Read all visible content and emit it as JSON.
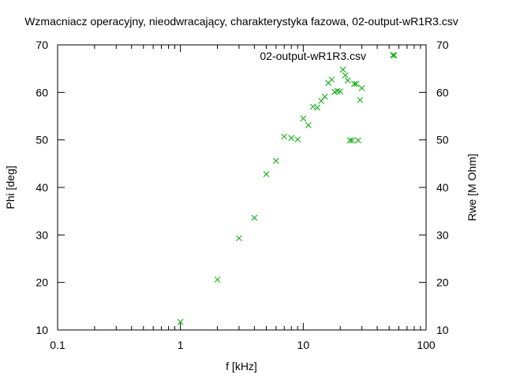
{
  "chart_data": {
    "type": "scatter",
    "title": "Wzmacniacz operacyjny, nieodwracający, charakterystyka fazowa, 02-output-wR1R3.csv",
    "xlabel": "f [kHz]",
    "ylabel": "Phi [deg]",
    "y2label": "Rwe [M Ohm]",
    "xscale": "log",
    "xlim": [
      0.1,
      100
    ],
    "ylim": [
      10,
      70
    ],
    "y2lim": [
      10,
      70
    ],
    "grid": false,
    "legend_position": "top-right",
    "xticks": [
      "0.1",
      "1",
      "10",
      "100"
    ],
    "yticks": [
      "10",
      "20",
      "30",
      "40",
      "50",
      "60",
      "70"
    ],
    "y2ticks": [
      "10",
      "20",
      "30",
      "40",
      "50",
      "60",
      "70"
    ],
    "series": [
      {
        "name": "02-output-wR1R3.csv",
        "color": "#00aa00",
        "marker": "x",
        "x": [
          1,
          2,
          3,
          4,
          5,
          6,
          7,
          8,
          9,
          10,
          11,
          12,
          13,
          14,
          15,
          16,
          17,
          18,
          19,
          20,
          21,
          22,
          23,
          24,
          25,
          26,
          27,
          28,
          29,
          30,
          55
        ],
        "y": [
          11.7,
          20.6,
          29.3,
          33.6,
          42.8,
          45.6,
          50.7,
          50.4,
          50.1,
          54.5,
          53.1,
          57.0,
          56.8,
          58.2,
          59.1,
          62.0,
          62.7,
          60.1,
          60.3,
          60.2,
          64.8,
          63.6,
          62.5,
          49.9,
          49.9,
          61.8,
          61.8,
          49.9,
          58.4,
          60.9,
          67.8
        ]
      }
    ]
  }
}
